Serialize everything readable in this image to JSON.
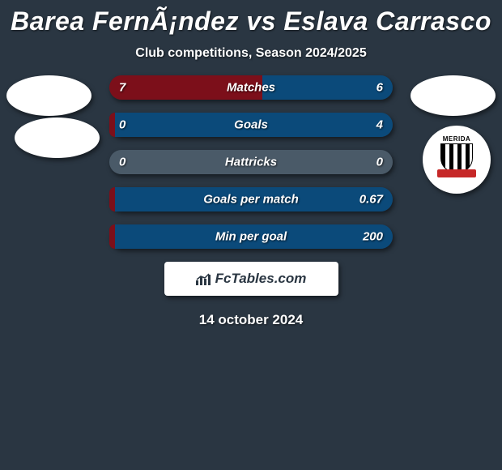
{
  "title": "Barea FernÃ¡ndez vs Eslava Carrasco",
  "subtitle": "Club competitions, Season 2024/2025",
  "date": "14 october 2024",
  "branding": "FcTables.com",
  "colors": {
    "background": "#2a3642",
    "left_bar": "#7c0f1a",
    "right_bar": "#0b4a7a",
    "neutral_bar": "#4a5a68"
  },
  "badge": {
    "top_text": "MERIDA"
  },
  "stats": [
    {
      "label": "Matches",
      "left_val": "7",
      "right_val": "6",
      "left_pct": 54,
      "right_pct": 46,
      "left_color": "#7c0f1a",
      "right_color": "#0b4a7a"
    },
    {
      "label": "Goals",
      "left_val": "0",
      "right_val": "4",
      "left_pct": 2,
      "right_pct": 98,
      "left_color": "#7c0f1a",
      "right_color": "#0b4a7a"
    },
    {
      "label": "Hattricks",
      "left_val": "0",
      "right_val": "0",
      "left_pct": 100,
      "right_pct": 0,
      "left_color": "#4a5a68",
      "right_color": "#4a5a68"
    },
    {
      "label": "Goals per match",
      "left_val": "",
      "right_val": "0.67",
      "left_pct": 2,
      "right_pct": 98,
      "left_color": "#7c0f1a",
      "right_color": "#0b4a7a"
    },
    {
      "label": "Min per goal",
      "left_val": "",
      "right_val": "200",
      "left_pct": 2,
      "right_pct": 98,
      "left_color": "#7c0f1a",
      "right_color": "#0b4a7a"
    }
  ]
}
